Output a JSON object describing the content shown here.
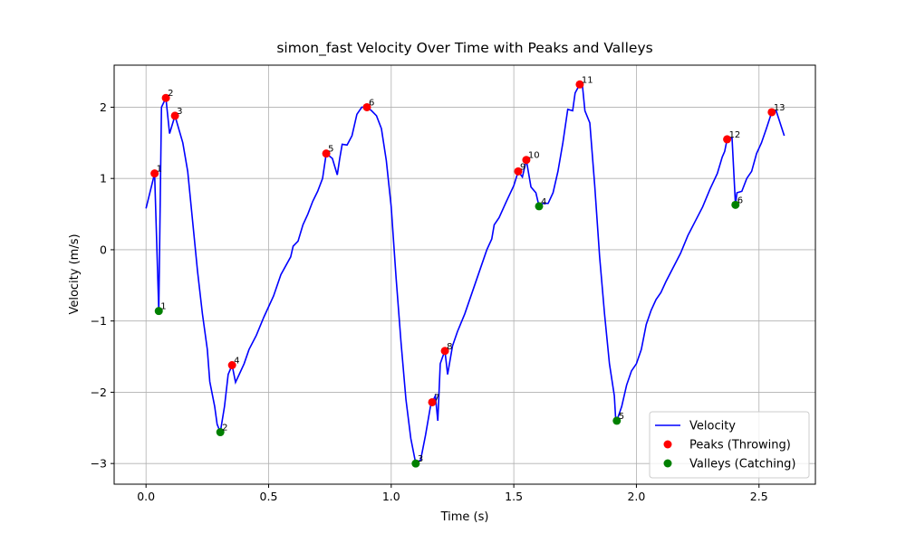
{
  "chart_data": {
    "type": "line",
    "title": "simon_fast Velocity Over Time with Peaks and Valleys",
    "xlabel": "Time (s)",
    "ylabel": "Velocity (m/s)",
    "xlim": [
      -0.13,
      2.73
    ],
    "ylim": [
      -3.29,
      2.59
    ],
    "xticks": [
      {
        "value": 0,
        "label": "0.0"
      },
      0.5,
      {
        "value": 1,
        "label": "1.0"
      },
      1.5,
      {
        "value": 2,
        "label": "2.0"
      },
      2.5
    ],
    "yticks": [
      {
        "value": -3,
        "label": "−3"
      },
      {
        "value": -2,
        "label": "−2"
      },
      {
        "value": -1,
        "label": "−1"
      },
      0,
      1,
      2
    ],
    "grid": true,
    "legend": "lower right",
    "series": [
      {
        "name": "Velocity",
        "type": "line",
        "color": "#0000ff",
        "x": [
          0,
          0.03,
          0.035,
          0.052,
          0.063,
          0.07,
          0.081,
          0.096,
          0.118,
          0.15,
          0.17,
          0.19,
          0.21,
          0.23,
          0.25,
          0.26,
          0.28,
          0.29,
          0.303,
          0.32,
          0.335,
          0.351,
          0.365,
          0.38,
          0.4,
          0.42,
          0.45,
          0.48,
          0.52,
          0.55,
          0.59,
          0.6,
          0.62,
          0.64,
          0.66,
          0.68,
          0.7,
          0.72,
          0.735,
          0.76,
          0.78,
          0.79,
          0.8,
          0.82,
          0.84,
          0.86,
          0.88,
          0.901,
          0.92,
          0.94,
          0.96,
          0.98,
          1.0,
          1.02,
          1.04,
          1.06,
          1.08,
          1.1,
          1.12,
          1.14,
          1.16,
          1.167,
          1.18,
          1.19,
          1.2,
          1.21,
          1.219,
          1.23,
          1.25,
          1.27,
          1.3,
          1.33,
          1.36,
          1.39,
          1.41,
          1.42,
          1.44,
          1.47,
          1.5,
          1.518,
          1.535,
          1.551,
          1.57,
          1.59,
          1.603,
          1.62,
          1.64,
          1.66,
          1.68,
          1.7,
          1.72,
          1.74,
          1.75,
          1.769,
          1.78,
          1.79,
          1.81,
          1.83,
          1.85,
          1.87,
          1.89,
          1.91,
          1.915,
          1.92,
          1.94,
          1.96,
          1.98,
          2.0,
          2.02,
          2.04,
          2.06,
          2.08,
          2.1,
          2.12,
          2.15,
          2.18,
          2.21,
          2.24,
          2.27,
          2.3,
          2.33,
          2.35,
          2.36,
          2.37,
          2.39,
          2.404,
          2.41,
          2.43,
          2.45,
          2.47,
          2.49,
          2.51,
          2.53,
          2.552,
          2.57,
          2.603
        ],
        "values": [
          0.58,
          1.0,
          1.07,
          -0.86,
          2.0,
          2.05,
          2.13,
          1.63,
          1.88,
          1.5,
          1.1,
          0.4,
          -0.3,
          -0.9,
          -1.4,
          -1.85,
          -2.2,
          -2.45,
          -2.56,
          -2.2,
          -1.75,
          -1.62,
          -1.86,
          -1.75,
          -1.6,
          -1.4,
          -1.2,
          -0.95,
          -0.65,
          -0.35,
          -0.1,
          0.05,
          0.12,
          0.35,
          0.5,
          0.68,
          0.82,
          1.0,
          1.35,
          1.28,
          1.05,
          1.28,
          1.48,
          1.47,
          1.6,
          1.9,
          2.0,
          2.0,
          1.95,
          1.88,
          1.7,
          1.25,
          0.6,
          -0.4,
          -1.3,
          -2.1,
          -2.65,
          -3.0,
          -2.95,
          -2.6,
          -2.2,
          -2.14,
          -2.05,
          -2.4,
          -1.6,
          -1.5,
          -1.42,
          -1.75,
          -1.35,
          -1.15,
          -0.9,
          -0.6,
          -0.3,
          0.0,
          0.15,
          0.35,
          0.45,
          0.68,
          0.9,
          1.1,
          1.02,
          1.26,
          0.88,
          0.8,
          0.61,
          0.65,
          0.65,
          0.8,
          1.1,
          1.5,
          1.97,
          1.95,
          2.2,
          2.32,
          2.3,
          1.95,
          1.78,
          0.9,
          -0.1,
          -0.9,
          -1.6,
          -2.05,
          -2.35,
          -2.4,
          -2.2,
          -1.9,
          -1.7,
          -1.6,
          -1.4,
          -1.05,
          -0.85,
          -0.7,
          -0.6,
          -0.45,
          -0.25,
          -0.05,
          0.2,
          0.4,
          0.6,
          0.85,
          1.07,
          1.3,
          1.38,
          1.55,
          1.57,
          0.63,
          0.8,
          0.82,
          1.0,
          1.1,
          1.35,
          1.5,
          1.7,
          1.93,
          1.95,
          1.6
        ]
      },
      {
        "name": "Peaks (Throwing)",
        "type": "scatter",
        "color": "#ff0000",
        "x": [
          0.035,
          0.081,
          0.118,
          0.351,
          0.735,
          0.901,
          1.167,
          1.219,
          1.518,
          1.551,
          1.769,
          2.37,
          2.552
        ],
        "values": [
          1.07,
          2.13,
          1.88,
          -1.62,
          1.35,
          2.0,
          -2.14,
          -1.42,
          1.1,
          1.26,
          2.32,
          1.55,
          1.93
        ],
        "labels": [
          "1",
          "2",
          "3",
          "4",
          "5",
          "6",
          "7",
          "8",
          "9",
          "10",
          "11",
          "12",
          "13"
        ]
      },
      {
        "name": "Valleys (Catching)",
        "type": "scatter",
        "color": "#008000",
        "x": [
          0.052,
          0.303,
          1.1,
          1.603,
          1.92,
          2.404
        ],
        "values": [
          -0.86,
          -2.56,
          -3.0,
          0.61,
          -2.4,
          0.63
        ],
        "labels": [
          "1",
          "2",
          "3",
          "4",
          "5",
          "6"
        ]
      }
    ]
  }
}
